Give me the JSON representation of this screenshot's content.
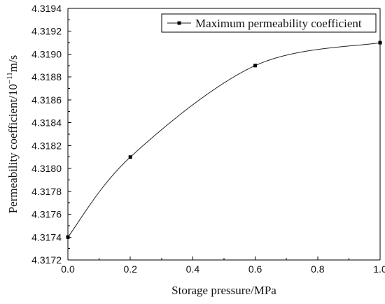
{
  "chart_data": {
    "type": "line",
    "title": "",
    "xlabel": "Storage pressure/MPa",
    "ylabel_main": "Permeability coefficient/10",
    "ylabel_exp": "−11",
    "ylabel_tail": "m/s",
    "xlim": [
      0.0,
      1.0
    ],
    "ylim": [
      4.3172,
      4.3194
    ],
    "x_ticks": [
      "0.0",
      "0.2",
      "0.4",
      "0.6",
      "0.8",
      "1.0"
    ],
    "y_ticks": [
      "4.3172",
      "4.3174",
      "4.3176",
      "4.3178",
      "4.3180",
      "4.3182",
      "4.3184",
      "4.3186",
      "4.3188",
      "4.3190",
      "4.3192",
      "4.3194"
    ],
    "legend_position": "top-right",
    "grid": false,
    "series": [
      {
        "name": "Maximum permeability coefficient",
        "x": [
          0.0,
          0.2,
          0.6,
          1.0
        ],
        "y": [
          4.3174,
          4.3181,
          4.3189,
          4.3191
        ],
        "color": "#000000"
      }
    ]
  }
}
